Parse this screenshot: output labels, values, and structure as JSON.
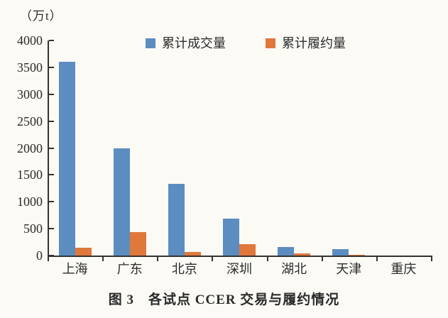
{
  "unit_label": "（万t）",
  "title": "图 3　各试点 CCER 交易与履约情况",
  "colors": {
    "traded": "#5b8dc1",
    "fulfilled": "#e0783c",
    "axis": "#333333",
    "background": "#fbfaf5"
  },
  "chart_data": {
    "type": "bar",
    "title": "图 3　各试点 CCER 交易与履约情况",
    "ylabel": "（万t）",
    "categories": [
      "上海",
      "广东",
      "北京",
      "深圳",
      "湖北",
      "天津",
      "重庆"
    ],
    "series": [
      {
        "name": "累计成交量",
        "color": "#5b8dc1",
        "values": [
          3600,
          2000,
          1330,
          680,
          160,
          115,
          0
        ]
      },
      {
        "name": "累计履约量",
        "color": "#e0783c",
        "values": [
          150,
          430,
          65,
          210,
          35,
          15,
          0
        ]
      }
    ],
    "ylim": [
      0,
      4000
    ],
    "ytick_step": 500,
    "grid": false,
    "legend_position": "top"
  }
}
